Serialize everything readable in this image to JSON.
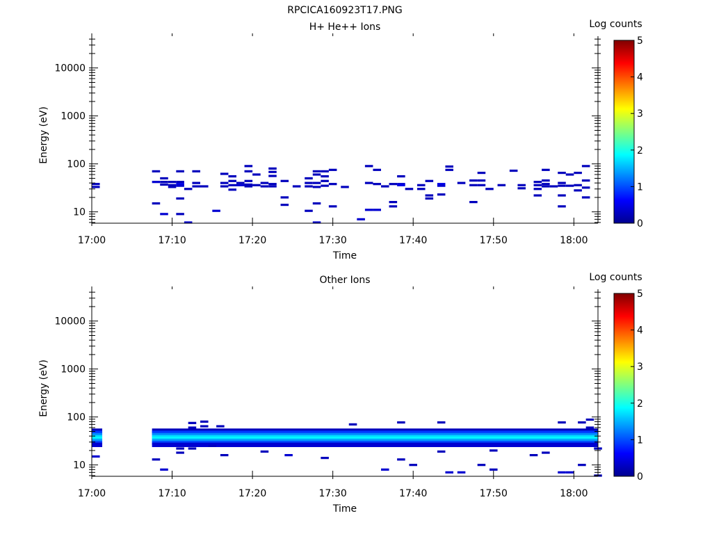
{
  "figure_title": "RPCICA160923T17.PNG",
  "chart_data": [
    {
      "type": "heatmap",
      "title": "H+ He++ Ions",
      "xlabel": "Time",
      "ylabel": "Energy (eV)",
      "x_ticks": [
        "17:00",
        "17:10",
        "17:20",
        "17:30",
        "17:40",
        "17:50",
        "18:00"
      ],
      "x_range_minutes": [
        0,
        63
      ],
      "y_scale": "log",
      "y_range": [
        5.8,
        46000
      ],
      "y_ticks": [
        10,
        100,
        1000,
        10000
      ],
      "y_tick_labels": [
        "10",
        "100",
        "1000",
        "10000"
      ],
      "colorbar": {
        "label": "Log counts",
        "range": [
          0,
          5
        ],
        "ticks": [
          "0",
          "1",
          "2",
          "3",
          "4",
          "5"
        ]
      },
      "grid": false,
      "points": [
        [
          0,
          33,
          0.3
        ],
        [
          0,
          38,
          0.3
        ],
        [
          7.5,
          70,
          0.3
        ],
        [
          7.5,
          42,
          0.4
        ],
        [
          7.5,
          15,
          0.3
        ],
        [
          8.5,
          50,
          0.3
        ],
        [
          8.5,
          42,
          0.3
        ],
        [
          8.5,
          37,
          0.3
        ],
        [
          8.5,
          9,
          0.4
        ],
        [
          9.5,
          42,
          0.3
        ],
        [
          9.5,
          36,
          0.3
        ],
        [
          9.5,
          33,
          0.3
        ],
        [
          10.5,
          70,
          0.3
        ],
        [
          10.5,
          42,
          0.3
        ],
        [
          10.5,
          38,
          0.5
        ],
        [
          10.5,
          35,
          0.4
        ],
        [
          10.5,
          19,
          0.3
        ],
        [
          10.5,
          9,
          0.3
        ],
        [
          11.5,
          30,
          0.3
        ],
        [
          11.5,
          6,
          0.4
        ],
        [
          12.5,
          70,
          0.3
        ],
        [
          12.5,
          40,
          0.3
        ],
        [
          12.5,
          34,
          0.3
        ],
        [
          13.5,
          34,
          0.3
        ],
        [
          15,
          10.5,
          0.4
        ],
        [
          16,
          62,
          0.3
        ],
        [
          16,
          40,
          0.3
        ],
        [
          16,
          34,
          0.3
        ],
        [
          17,
          55,
          0.3
        ],
        [
          17,
          44,
          0.3
        ],
        [
          17,
          36,
          0.3
        ],
        [
          17,
          29,
          0.3
        ],
        [
          18,
          40,
          0.3
        ],
        [
          18,
          36,
          0.4
        ],
        [
          19,
          90,
          0.3
        ],
        [
          19,
          70,
          0.3
        ],
        [
          19,
          44,
          0.3
        ],
        [
          19,
          37,
          0.3
        ],
        [
          19,
          34,
          0.3
        ],
        [
          20,
          60,
          0.3
        ],
        [
          20,
          36,
          0.3
        ],
        [
          21,
          40,
          0.3
        ],
        [
          21,
          34,
          0.3
        ],
        [
          22,
          80,
          0.3
        ],
        [
          22,
          68,
          0.3
        ],
        [
          22,
          56,
          0.3
        ],
        [
          22,
          38,
          0.3
        ],
        [
          22,
          34,
          0.3
        ],
        [
          23.5,
          44,
          0.3
        ],
        [
          23.5,
          20,
          0.3
        ],
        [
          23.5,
          14,
          0.3
        ],
        [
          25,
          34,
          0.3
        ],
        [
          26.5,
          50,
          0.3
        ],
        [
          26.5,
          40,
          0.3
        ],
        [
          26.5,
          34,
          0.3
        ],
        [
          26.5,
          10.5,
          0.3
        ],
        [
          27.5,
          70,
          0.3
        ],
        [
          27.5,
          60,
          0.3
        ],
        [
          27.5,
          40,
          0.3
        ],
        [
          27.5,
          33,
          0.3
        ],
        [
          27.5,
          15,
          0.3
        ],
        [
          27.5,
          6,
          0.4
        ],
        [
          28.5,
          70,
          0.3
        ],
        [
          28.5,
          55,
          0.3
        ],
        [
          28.5,
          44,
          0.3
        ],
        [
          28.5,
          35,
          0.3
        ],
        [
          29.5,
          75,
          0.3
        ],
        [
          29.5,
          38,
          0.3
        ],
        [
          29.5,
          13,
          0.3
        ],
        [
          31,
          33,
          0.3
        ],
        [
          33,
          7,
          0.4
        ],
        [
          34,
          90,
          0.3
        ],
        [
          34,
          40,
          0.3
        ],
        [
          34,
          11,
          0.4
        ],
        [
          35,
          75,
          0.3
        ],
        [
          35,
          38,
          0.3
        ],
        [
          35,
          11,
          0.4
        ],
        [
          36,
          34,
          0.3
        ],
        [
          37,
          38,
          0.3
        ],
        [
          37,
          16,
          0.3
        ],
        [
          37,
          13,
          0.3
        ],
        [
          38,
          55,
          0.3
        ],
        [
          38,
          38,
          0.4
        ],
        [
          38,
          36,
          0.5
        ],
        [
          39,
          30,
          0.3
        ],
        [
          40.5,
          36,
          0.3
        ],
        [
          40.5,
          30,
          0.3
        ],
        [
          41.5,
          44,
          0.3
        ],
        [
          41.5,
          22,
          0.3
        ],
        [
          41.5,
          19,
          0.3
        ],
        [
          43,
          38,
          0.5
        ],
        [
          43,
          35,
          0.4
        ],
        [
          43,
          23,
          0.3
        ],
        [
          44,
          88,
          0.3
        ],
        [
          44,
          75,
          0.3
        ],
        [
          45.5,
          40,
          0.3
        ],
        [
          47,
          45,
          0.3
        ],
        [
          47,
          36,
          0.3
        ],
        [
          47,
          16,
          0.3
        ],
        [
          48,
          65,
          0.3
        ],
        [
          48,
          45,
          0.3
        ],
        [
          48,
          36,
          0.3
        ],
        [
          49,
          30,
          0.3
        ],
        [
          50.5,
          36,
          0.3
        ],
        [
          52,
          72,
          0.3
        ],
        [
          53,
          36,
          0.3
        ],
        [
          53,
          31,
          0.3
        ],
        [
          55,
          42,
          0.3
        ],
        [
          55,
          36,
          0.3
        ],
        [
          55,
          30,
          0.3
        ],
        [
          55,
          22,
          0.3
        ],
        [
          56,
          75,
          0.3
        ],
        [
          56,
          45,
          0.3
        ],
        [
          56,
          38,
          0.3
        ],
        [
          56,
          34,
          0.3
        ],
        [
          57,
          34,
          0.3
        ],
        [
          58,
          65,
          0.3
        ],
        [
          58,
          40,
          0.3
        ],
        [
          58,
          35,
          0.3
        ],
        [
          58,
          22,
          0.3
        ],
        [
          58,
          13,
          0.3
        ],
        [
          59,
          60,
          0.3
        ],
        [
          59,
          35,
          0.3
        ],
        [
          60,
          65,
          0.3
        ],
        [
          60,
          36,
          0.3
        ],
        [
          60,
          28,
          0.3
        ],
        [
          61,
          90,
          0.3
        ],
        [
          61,
          45,
          0.3
        ],
        [
          61,
          32,
          0.3
        ],
        [
          61,
          20,
          0.3
        ]
      ]
    },
    {
      "type": "heatmap",
      "title": "Other Ions",
      "xlabel": "Time",
      "ylabel": "Energy (eV)",
      "x_ticks": [
        "17:00",
        "17:10",
        "17:20",
        "17:30",
        "17:40",
        "17:50",
        "18:00"
      ],
      "x_range_minutes": [
        0,
        63
      ],
      "y_scale": "log",
      "y_range": [
        5.8,
        46000
      ],
      "y_ticks": [
        10,
        100,
        1000,
        10000
      ],
      "y_tick_labels": [
        "10",
        "100",
        "1000",
        "10000"
      ],
      "colorbar": {
        "label": "Log counts",
        "range": [
          0,
          5
        ],
        "ticks": [
          "0",
          "1",
          "2",
          "3",
          "4",
          "5"
        ]
      },
      "grid": false,
      "band": {
        "time_segments_minutes": [
          [
            0,
            1.3
          ],
          [
            7.5,
            63
          ]
        ],
        "levels": [
          {
            "energy": 52,
            "value": 0.3
          },
          {
            "energy": 47,
            "value": 0.9
          },
          {
            "energy": 42,
            "value": 1.3
          },
          {
            "energy": 38,
            "value": 1.7
          },
          {
            "energy": 35,
            "value": 1.85
          },
          {
            "energy": 32,
            "value": 1.45
          },
          {
            "energy": 29,
            "value": 1.0
          },
          {
            "energy": 26.5,
            "value": 0.4
          }
        ]
      },
      "points": [
        [
          0,
          15,
          0.4
        ],
        [
          7.5,
          13,
          0.3
        ],
        [
          8.5,
          8,
          0.4
        ],
        [
          10.5,
          22,
          0.3
        ],
        [
          10.5,
          18,
          0.3
        ],
        [
          12,
          75,
          0.3
        ],
        [
          12,
          60,
          0.3
        ],
        [
          12,
          22,
          0.3
        ],
        [
          13.5,
          80,
          0.3
        ],
        [
          13.5,
          64,
          0.3
        ],
        [
          14.5,
          25,
          0.3
        ],
        [
          15.5,
          64,
          0.3
        ],
        [
          16,
          16,
          0.3
        ],
        [
          21,
          19,
          0.3
        ],
        [
          24,
          16,
          0.4
        ],
        [
          28.5,
          14,
          0.3
        ],
        [
          32,
          70,
          0.3
        ],
        [
          36,
          8,
          0.4
        ],
        [
          38,
          77,
          0.3
        ],
        [
          38,
          13,
          0.3
        ],
        [
          39.5,
          10,
          0.3
        ],
        [
          43,
          77,
          0.3
        ],
        [
          43,
          19,
          0.3
        ],
        [
          44,
          7,
          0.4
        ],
        [
          45.5,
          7,
          0.4
        ],
        [
          48,
          10,
          0.3
        ],
        [
          49.5,
          20,
          0.3
        ],
        [
          49.5,
          8,
          0.3
        ],
        [
          54.5,
          16,
          0.3
        ],
        [
          56,
          18,
          0.3
        ],
        [
          58,
          77,
          0.3
        ],
        [
          58,
          7,
          0.4
        ],
        [
          59,
          7,
          0.4
        ],
        [
          60.5,
          77,
          0.3
        ],
        [
          60.5,
          10,
          0.3
        ],
        [
          61.5,
          88,
          0.3
        ],
        [
          61.5,
          60,
          0.3
        ],
        [
          62.5,
          22,
          0.3
        ],
        [
          62.5,
          6,
          0.3
        ]
      ]
    }
  ]
}
